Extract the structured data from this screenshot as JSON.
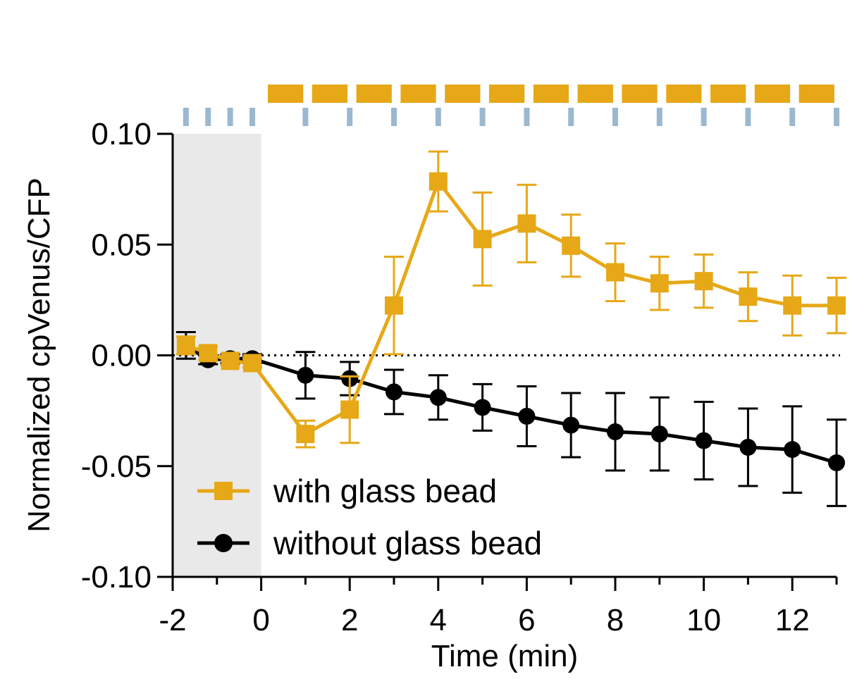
{
  "chart_data": {
    "type": "line",
    "title": "",
    "xlabel": "Time (min)",
    "ylabel": "Normalized cpVenus/CFP",
    "xlim": [
      -2,
      13
    ],
    "ylim": [
      -0.1,
      0.1
    ],
    "x_ticks": [
      -2,
      0,
      2,
      4,
      6,
      8,
      10,
      12
    ],
    "x_tick_labels": [
      "-2",
      "0",
      "2",
      "4",
      "6",
      "8",
      "10",
      "12"
    ],
    "y_ticks": [
      0.1,
      0.05,
      0.0,
      -0.05,
      -0.1
    ],
    "y_tick_labels": [
      "0.10",
      "0.05",
      "0.00",
      "-0.05",
      "-0.10"
    ],
    "baseline": 0,
    "shaded_region": {
      "x_start": -2,
      "x_end": 0,
      "color": "#e9e9e9"
    },
    "stimulus_bars": {
      "color": "#e6a817",
      "starts": [
        0.15,
        1.15,
        2.15,
        3.15,
        4.15,
        5.15,
        6.15,
        7.15,
        8.15,
        9.15,
        10.15,
        11.15,
        12.15
      ],
      "duration": 0.8
    },
    "acquisition_ticks": {
      "color": "#9bb8d0",
      "x": [
        -1.7,
        -1.2,
        -0.7,
        -0.2,
        1,
        2,
        3,
        4,
        5,
        6,
        7,
        8,
        9,
        10,
        11,
        12,
        13
      ]
    },
    "series": [
      {
        "name": "with glass bead",
        "color": "#e6a817",
        "marker": "square",
        "x": [
          -1.7,
          -1.2,
          -0.7,
          -0.2,
          1,
          2,
          3,
          4,
          5,
          6,
          7,
          8,
          9,
          10,
          11,
          12,
          13
        ],
        "y": [
          0.0045,
          0.001,
          -0.0025,
          -0.0035,
          -0.0355,
          -0.0245,
          0.0225,
          0.0785,
          0.0525,
          0.0595,
          0.0495,
          0.0375,
          0.0325,
          0.0335,
          0.0265,
          0.0225,
          0.0225
        ],
        "err": [
          0.004,
          0.003,
          0.002,
          0.002,
          0.006,
          0.015,
          0.022,
          0.0135,
          0.021,
          0.0175,
          0.014,
          0.013,
          0.012,
          0.012,
          0.011,
          0.0135,
          0.0125
        ]
      },
      {
        "name": "without glass bead",
        "color": "#000000",
        "marker": "circle",
        "x": [
          -1.7,
          -1.2,
          -0.7,
          -0.2,
          1,
          2,
          3,
          4,
          5,
          6,
          7,
          8,
          9,
          10,
          11,
          12,
          13
        ],
        "y": [
          0.0045,
          -0.002,
          -0.0015,
          -0.0015,
          -0.009,
          -0.0105,
          -0.0165,
          -0.019,
          -0.0235,
          -0.0275,
          -0.0315,
          -0.0345,
          -0.0355,
          -0.0385,
          -0.0415,
          -0.0425,
          -0.0485
        ],
        "err": [
          0.006,
          0.002,
          0.002,
          0.002,
          0.0105,
          0.0075,
          0.01,
          0.01,
          0.0105,
          0.0135,
          0.0145,
          0.0175,
          0.0165,
          0.0175,
          0.0175,
          0.0195,
          0.0195
        ]
      }
    ],
    "legend": [
      {
        "label": "with glass bead",
        "color": "#e6a817",
        "marker": "square"
      },
      {
        "label": "without glass bead",
        "color": "#000000",
        "marker": "circle"
      }
    ],
    "legend_position": "bottom-left"
  }
}
